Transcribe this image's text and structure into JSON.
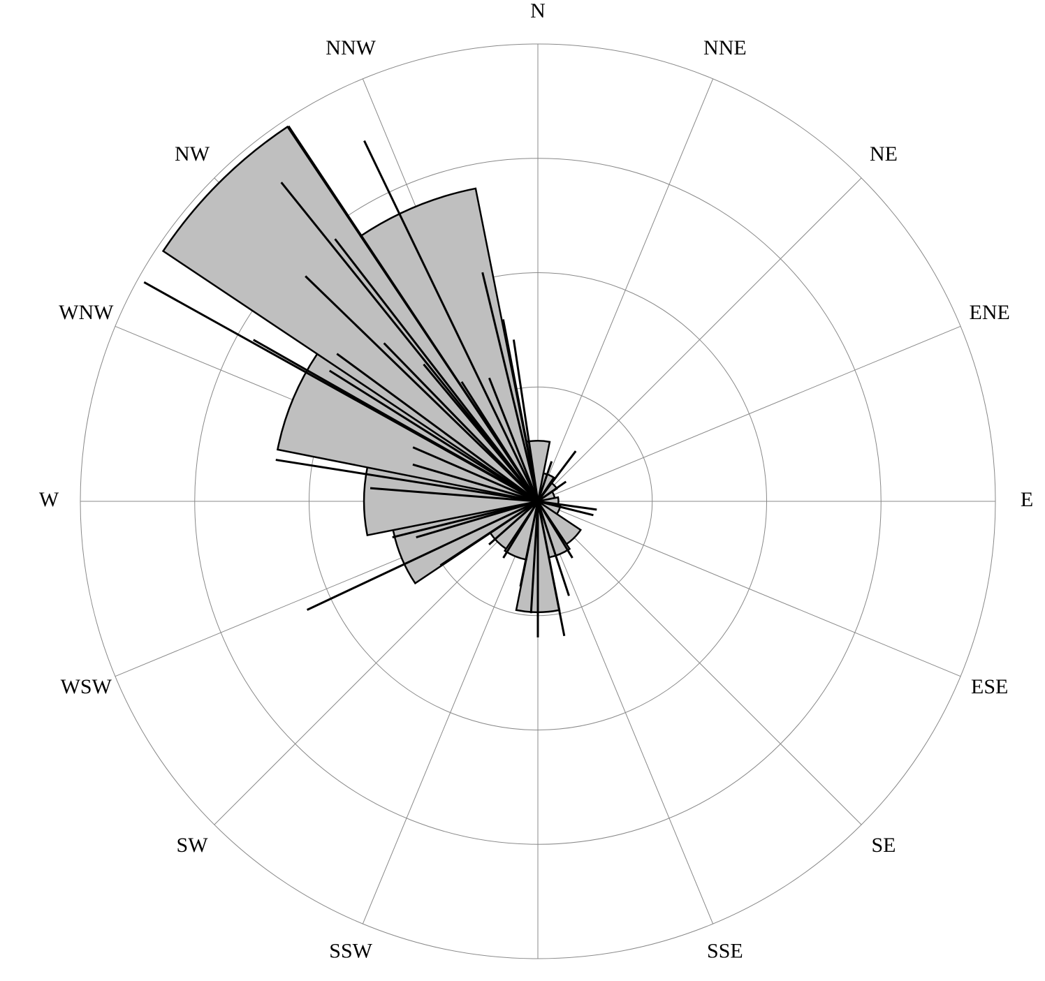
{
  "chart_data": {
    "type": "rose",
    "categories": [
      "N",
      "NNE",
      "NE",
      "ENE",
      "E",
      "ESE",
      "SE",
      "SSE",
      "S",
      "SSW",
      "SW",
      "WSW",
      "W",
      "WNW",
      "NW",
      "NNW"
    ],
    "values": [
      0.53,
      0.25,
      0.2,
      0.15,
      0.18,
      0.2,
      0.45,
      0.5,
      0.97,
      0.52,
      0.5,
      1.29,
      1.52,
      2.32,
      3.94,
      2.79
    ],
    "color": "#bfbfbf",
    "rlim": [
      0,
      4
    ],
    "rticks": [
      1,
      2,
      3,
      4
    ],
    "observations": {
      "direction": [
        299.1,
        326.4,
        334.3,
        321.2,
        314.1,
        322.3,
        346.4,
        279.0,
        244.8,
        180,
        168.9,
        98,
        37,
        299.6,
        274.5,
        351.5,
        315.8,
        320.2,
        286.4,
        256.1,
        236.7,
        211.4,
        191.6,
        161.8,
        148.6,
        104,
        19,
        55,
        327.5,
        338.5,
        349.2,
        306.3,
        302.1,
        293.4,
        253.5,
        228.5,
        183.5
      ],
      "length": [
        3.94,
        3.94,
        3.5,
        3.58,
        2.83,
        2.9,
        2.06,
        2.32,
        2.23,
        1.19,
        1.2,
        0.52,
        0.55,
        2.86,
        1.47,
        1.43,
        1.93,
        1.56,
        1.14,
        1.31,
        1.02,
        0.58,
        0.76,
        0.87,
        0.58,
        0.5,
        0.37,
        0.3,
        1.24,
        1.16,
        1.62,
        2.18,
        2.15,
        1.19,
        1.11,
        0.57,
        0.98
      ]
    }
  }
}
